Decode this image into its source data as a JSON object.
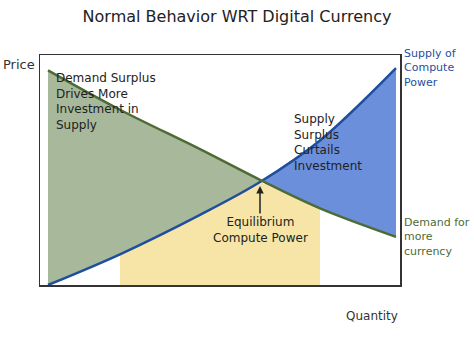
{
  "chart_data": {
    "type": "line",
    "title": "Normal Behavior WRT Digital Currency",
    "x_label": "Quantity",
    "y_label": "Price",
    "x": [
      0.2,
      2,
      4,
      5.5,
      7,
      8.9
    ],
    "series": [
      {
        "name": "Supply of Compute Power",
        "color": "#1f4e9c",
        "values": [
          0,
          1.4,
          3.2,
          4.7,
          6.6,
          9.9
        ]
      },
      {
        "name": "Demand for more currency",
        "color": "#4d6b35",
        "values": [
          9.8,
          8.0,
          6.2,
          4.8,
          3.5,
          2.2
        ]
      }
    ],
    "xlim": [
      0,
      9
    ],
    "ylim": [
      0,
      10.5
    ],
    "tick_labels": false,
    "grid": false,
    "annotations": [
      {
        "text": "Demand Surplus Drives More Investment in Supply"
      },
      {
        "text": "Supply Surplus Curtails Investment"
      },
      {
        "text": "Equilibrium Compute Power"
      }
    ]
  }
}
